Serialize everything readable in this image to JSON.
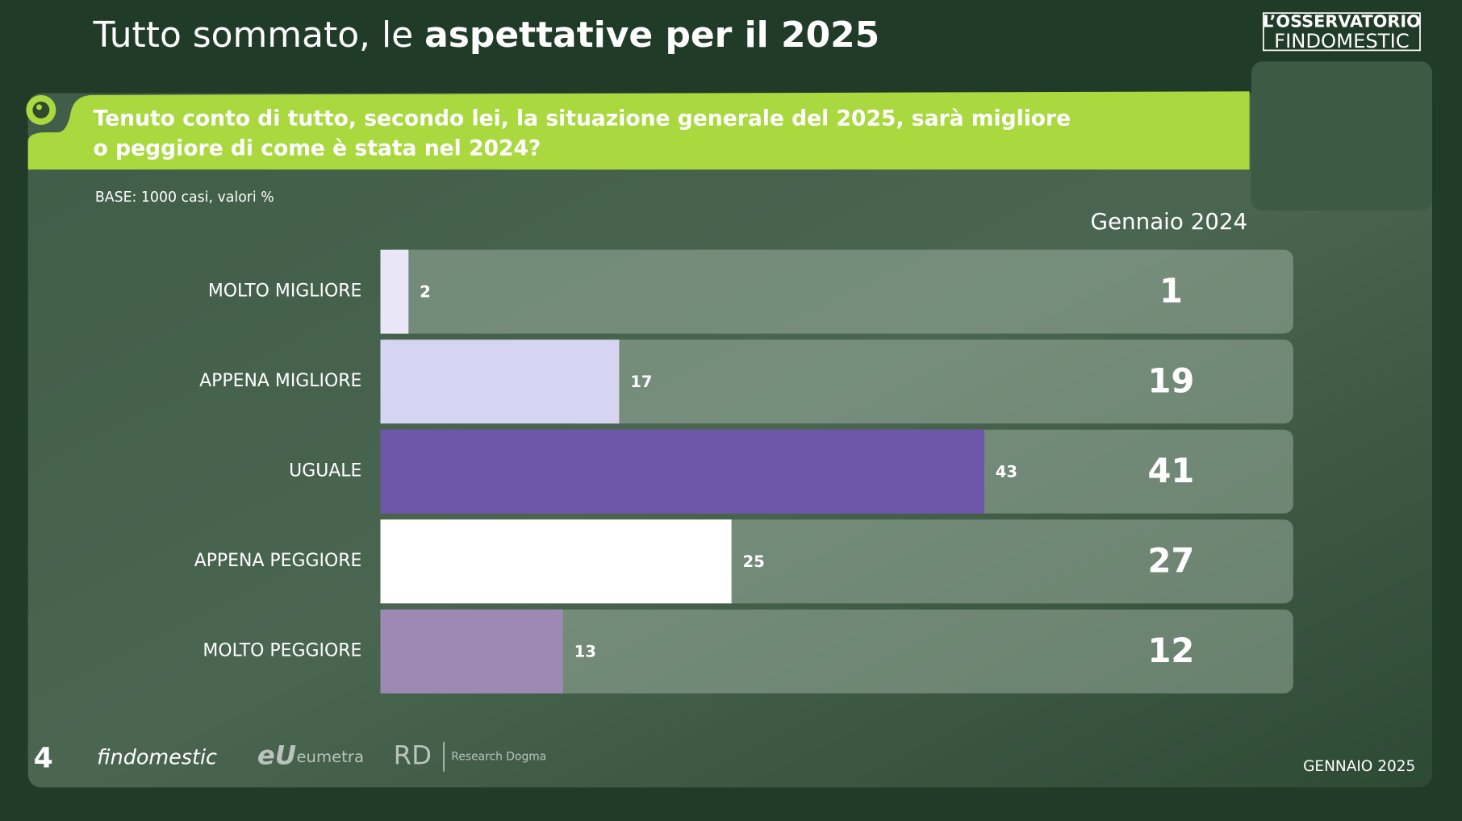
{
  "chart_data": {
    "type": "bar",
    "orientation": "horizontal",
    "title": "Tutto sommato, le",
    "title_emphasis": "aspettative per il 2025",
    "logo": [
      "L’OSSERVATORIO",
      "FINDOMESTIC"
    ],
    "question": [
      "Tenuto conto di tutto, secondo lei, la situazione generale del 2025, sarà migliore",
      "o peggiore di come è stata nel 2024?"
    ],
    "base_note": "BASE: 1000 casi, valori %",
    "categories": [
      "MOLTO MIGLIORE",
      "APPENA MIGLIORE",
      "UGUALE",
      "APPENA PEGGIORE",
      "MOLTO PEGGIORE"
    ],
    "values": [
      2,
      17,
      43,
      25,
      13
    ],
    "colors": [
      "#e9e7f7",
      "#d5d5f2",
      "#6e56aa",
      "#ffffff",
      "#9d8ab4"
    ],
    "xlim": [
      0,
      65
    ],
    "comparison": {
      "name": "Gennaio 2024",
      "values": [
        1,
        19,
        41,
        27,
        12
      ]
    },
    "footer": {
      "brands": [
        "findomestic",
        "eumetra",
        "Research Dogma"
      ],
      "date": "GENNAIO 2025"
    }
  }
}
